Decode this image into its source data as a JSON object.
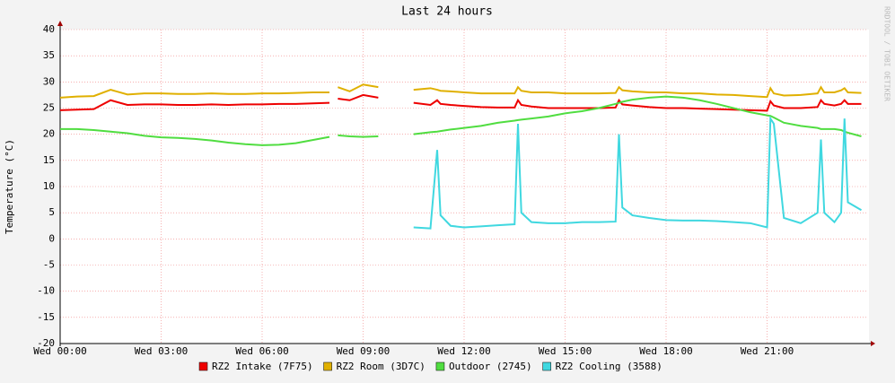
{
  "chart_data": {
    "type": "line",
    "title": "Last 24 hours",
    "y_label": "Temperature (°C)",
    "watermark": "RRDTOOL / TOBI OETIKER",
    "x": [
      0,
      0.5,
      1,
      1.5,
      2,
      2.5,
      3,
      3.5,
      4,
      4.5,
      5,
      5.5,
      6,
      6.5,
      7,
      7.5,
      8,
      8.1,
      8.25,
      8.6,
      9.0,
      9.45,
      10.0,
      10.5,
      11,
      11.2,
      11.3,
      11.6,
      12,
      12.5,
      13,
      13.5,
      13.6,
      13.7,
      14,
      14.5,
      15,
      15.5,
      16,
      16.5,
      16.6,
      16.7,
      17,
      17.5,
      18,
      18.5,
      19,
      19.5,
      20,
      20.5,
      21,
      21.1,
      21.2,
      21.5,
      22,
      22.5,
      22.6,
      22.7,
      23,
      23.2,
      23.3,
      23.4,
      23.8
    ],
    "xlim": [
      0,
      24
    ],
    "xticks": [
      {
        "value": 0,
        "label": "Wed 00:00"
      },
      {
        "value": 3,
        "label": "Wed 03:00"
      },
      {
        "value": 6,
        "label": "Wed 06:00"
      },
      {
        "value": 9,
        "label": "Wed 09:00"
      },
      {
        "value": 12,
        "label": "Wed 12:00"
      },
      {
        "value": 15,
        "label": "Wed 15:00"
      },
      {
        "value": 18,
        "label": "Wed 18:00"
      },
      {
        "value": 21,
        "label": "Wed 21:00"
      }
    ],
    "ylim": [
      -20,
      40
    ],
    "yticks": [
      -20,
      -15,
      -10,
      -5,
      0,
      5,
      10,
      15,
      20,
      25,
      30,
      35,
      40
    ],
    "grid": true,
    "series": [
      {
        "name": "RZ2 Intake (7F75)",
        "color": "#ee0000",
        "values": [
          24.6,
          24.7,
          24.8,
          26.5,
          25.6,
          25.7,
          25.7,
          25.6,
          25.6,
          25.7,
          25.6,
          25.7,
          25.7,
          25.8,
          25.8,
          25.9,
          26,
          null,
          26.8,
          26.5,
          27.5,
          27,
          null,
          26,
          25.6,
          26.5,
          25.8,
          25.6,
          25.4,
          25.2,
          25.1,
          25.1,
          26.5,
          25.6,
          25.3,
          25,
          25,
          25,
          25,
          25.1,
          26.5,
          25.7,
          25.5,
          25.2,
          25,
          25,
          24.9,
          24.8,
          24.7,
          24.6,
          24.5,
          26.3,
          25.5,
          25,
          25,
          25.2,
          26.5,
          25.8,
          25.5,
          25.8,
          26.5,
          25.8,
          25.8
        ]
      },
      {
        "name": "RZ2 Room (3D7C)",
        "color": "#e0b000",
        "values": [
          27,
          27.2,
          27.3,
          28.5,
          27.6,
          27.8,
          27.8,
          27.7,
          27.7,
          27.8,
          27.7,
          27.7,
          27.8,
          27.8,
          27.9,
          28,
          28,
          null,
          29,
          28.2,
          29.5,
          29,
          null,
          28.5,
          28.8,
          28.5,
          28.3,
          28.2,
          28,
          27.8,
          27.8,
          27.8,
          29,
          28.3,
          28,
          28,
          27.8,
          27.8,
          27.8,
          27.9,
          29,
          28.4,
          28.2,
          28,
          28,
          27.8,
          27.8,
          27.6,
          27.5,
          27.3,
          27.1,
          28.8,
          27.8,
          27.4,
          27.5,
          27.8,
          29,
          28,
          28,
          28.4,
          28.8,
          28,
          27.9
        ]
      },
      {
        "name": "Outdoor (2745)",
        "color": "#50dd40",
        "values": [
          21,
          21,
          20.8,
          20.5,
          20.2,
          19.7,
          19.4,
          19.3,
          19.1,
          18.8,
          18.4,
          18.1,
          17.9,
          18,
          18.3,
          18.9,
          19.5,
          null,
          19.8,
          19.6,
          19.5,
          19.6,
          null,
          20,
          20.4,
          20.5,
          20.6,
          20.9,
          21.2,
          21.6,
          22.2,
          22.6,
          22.7,
          22.8,
          23,
          23.4,
          24,
          24.4,
          25,
          25.8,
          26,
          26.2,
          26.6,
          27,
          27.2,
          27,
          26.5,
          25.8,
          25,
          24.2,
          23.6,
          23.5,
          23.2,
          22.2,
          21.6,
          21.2,
          21,
          21,
          21,
          20.8,
          20.5,
          20.3,
          19.6
        ]
      },
      {
        "name": "RZ2 Cooling (3588)",
        "color": "#40d8e0",
        "values": [
          null,
          null,
          null,
          null,
          null,
          null,
          null,
          null,
          null,
          null,
          null,
          null,
          null,
          null,
          null,
          null,
          null,
          null,
          null,
          null,
          null,
          null,
          null,
          2.2,
          2,
          17,
          4.5,
          2.5,
          2.2,
          2.4,
          2.6,
          2.8,
          22,
          5,
          3.2,
          3,
          3,
          3.2,
          3.2,
          3.3,
          20,
          6,
          4.5,
          4,
          3.6,
          3.5,
          3.5,
          3.4,
          3.2,
          3,
          2.2,
          23,
          22,
          4,
          3,
          5,
          19,
          5,
          3.2,
          5,
          23,
          7,
          5.5
        ]
      }
    ]
  }
}
